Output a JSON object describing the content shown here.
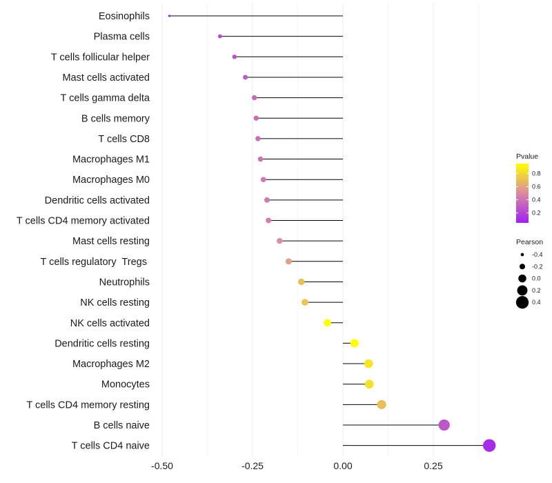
{
  "chart_data": {
    "type": "lollipop",
    "title": "",
    "xlabel": "",
    "ylabel": "",
    "xlim": [
      -0.5,
      0.41
    ],
    "x_ticks": [
      -0.5,
      -0.25,
      0.0,
      0.25
    ],
    "x_tick_labels": [
      "-0.50",
      "-0.25",
      "0.00",
      "0.25"
    ],
    "baseline": 0,
    "categories": [
      "Eosinophils",
      "Plasma cells",
      "T cells follicular helper",
      "Mast cells activated",
      "T cells gamma delta",
      "B cells memory",
      "T cells CD8",
      "Macrophages M1",
      "Macrophages M0",
      "Dendritic cells activated",
      "T cells CD4 memory activated",
      "Mast cells resting",
      "T cells regulatory  Tregs ",
      "Neutrophils",
      "NK cells resting",
      "NK cells activated",
      "Dendritic cells resting",
      "Macrophages M2",
      "Monocytes",
      "T cells CD4 memory resting",
      "B cells naive",
      "T cells CD4 naive"
    ],
    "values": [
      -0.48,
      -0.34,
      -0.3,
      -0.27,
      -0.245,
      -0.24,
      -0.235,
      -0.228,
      -0.22,
      -0.21,
      -0.206,
      -0.175,
      -0.15,
      -0.115,
      -0.105,
      -0.043,
      0.032,
      0.071,
      0.073,
      0.107,
      0.28,
      0.405
    ],
    "pvalues": [
      0.05,
      0.22,
      0.26,
      0.3,
      0.36,
      0.37,
      0.38,
      0.4,
      0.42,
      0.44,
      0.45,
      0.52,
      0.58,
      0.7,
      0.72,
      0.95,
      0.95,
      0.85,
      0.83,
      0.7,
      0.28,
      0.1
    ],
    "color_legend": {
      "title": "Pvalue",
      "ticks": [
        0.2,
        0.4,
        0.6,
        0.8
      ],
      "tick_labels": [
        "0.2",
        "0.4",
        "0.6",
        "0.8"
      ],
      "range": [
        0.05,
        0.95
      ],
      "low_color": "#a020f0",
      "mid_color": "#d98ba0",
      "high_color": "#ffff00"
    },
    "size_legend": {
      "title": "Pearson",
      "values": [
        -0.4,
        -0.2,
        0.0,
        0.2,
        0.4
      ],
      "labels": [
        "-0.4",
        "-0.2",
        "0.0",
        "0.2",
        "0.4"
      ]
    },
    "grid": true,
    "legend_position": "right"
  }
}
